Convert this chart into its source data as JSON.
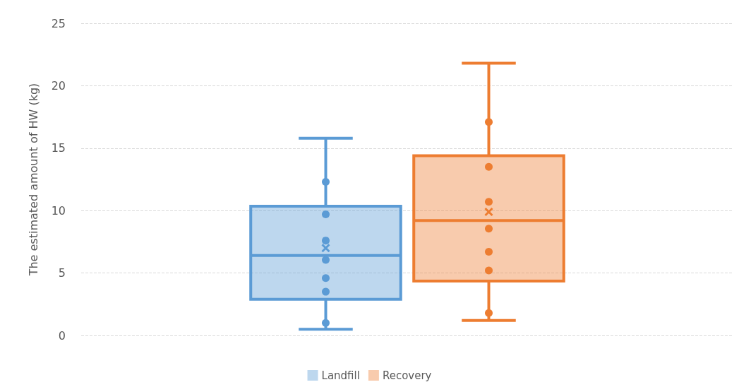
{
  "chart_data": {
    "type": "box",
    "ylabel": "The estimated amount of HW (kg)",
    "categories": [
      null
    ],
    "ylim": [
      0,
      25
    ],
    "yticks": [
      0,
      5,
      10,
      15,
      20,
      25
    ],
    "grid": "y",
    "legend": "bottom",
    "series": [
      {
        "name": "Landfill",
        "color": "#5b9bd5",
        "boxes": [
          {
            "low": 0.5,
            "q1": 2.9,
            "median": 6.4,
            "q3": 10.35,
            "high": 15.8,
            "mean": 7.0,
            "outliers": [
              1.0,
              3.5,
              4.6,
              6.05,
              7.6,
              9.7,
              12.3
            ]
          }
        ]
      },
      {
        "name": "Recovery",
        "color": "#ed7d31",
        "boxes": [
          {
            "low": 1.2,
            "q1": 4.35,
            "median": 9.2,
            "q3": 14.4,
            "high": 21.8,
            "mean": 9.9,
            "outliers": [
              1.8,
              5.2,
              6.7,
              8.55,
              10.7,
              13.5,
              17.1
            ]
          }
        ]
      }
    ]
  }
}
